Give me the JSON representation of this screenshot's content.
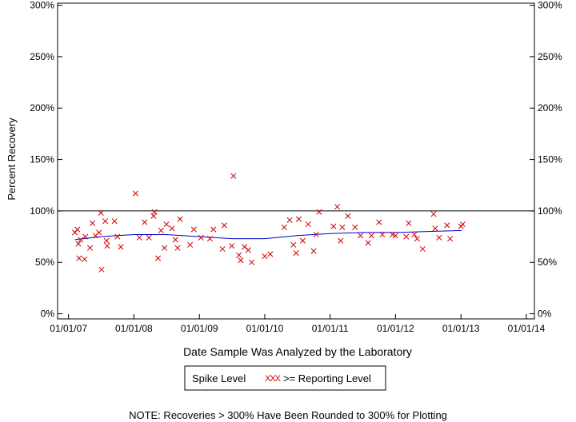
{
  "chart_data": {
    "type": "scatter",
    "xlabel": "Date Sample Was Analyzed by the Laboratory",
    "ylabel": "Percent Recovery",
    "x_ticks": [
      "01/01/07",
      "01/01/08",
      "01/01/09",
      "01/01/10",
      "01/01/11",
      "01/01/12",
      "01/01/13",
      "01/01/14"
    ],
    "y_ticks": [
      "0%",
      "50%",
      "100%",
      "150%",
      "200%",
      "250%",
      "300%"
    ],
    "xlim": [
      "2006-11-01",
      "2014-02-15"
    ],
    "ylim": [
      -5,
      302
    ],
    "reference_line": 100,
    "legend": {
      "title": "Spike Level",
      "marker": "XXX",
      "label": ">= Reporting Level",
      "placement": "bottom-center"
    },
    "note": "NOTE: Recoveries > 300% Have Been Rounded to 300% for Plotting",
    "colors": {
      "points": "#cc0000",
      "trend": "#0000cc",
      "axes": "#000000"
    },
    "series": [
      {
        "values": [
          [
            "2007-02-05",
            79
          ],
          [
            "2007-02-20",
            82
          ],
          [
            "2007-02-25",
            68
          ],
          [
            "2007-03-01",
            54
          ],
          [
            "2007-03-10",
            72
          ],
          [
            "2007-04-01",
            53
          ],
          [
            "2007-04-05",
            75
          ],
          [
            "2007-05-01",
            64
          ],
          [
            "2007-05-15",
            88
          ],
          [
            "2007-06-01",
            76
          ],
          [
            "2007-06-20",
            79
          ],
          [
            "2007-07-01",
            98
          ],
          [
            "2007-07-05",
            43
          ],
          [
            "2007-07-25",
            90
          ],
          [
            "2007-08-01",
            71
          ],
          [
            "2007-08-05",
            66
          ],
          [
            "2007-09-15",
            90
          ],
          [
            "2007-10-01",
            75
          ],
          [
            "2007-10-20",
            65
          ],
          [
            "2008-01-10",
            117
          ],
          [
            "2008-02-01",
            74
          ],
          [
            "2008-03-01",
            89
          ],
          [
            "2008-03-25",
            74
          ],
          [
            "2008-04-20",
            95
          ],
          [
            "2008-04-25",
            99
          ],
          [
            "2008-05-15",
            54
          ],
          [
            "2008-06-01",
            81
          ],
          [
            "2008-06-20",
            64
          ],
          [
            "2008-07-01",
            87
          ],
          [
            "2008-08-01",
            83
          ],
          [
            "2008-08-20",
            72
          ],
          [
            "2008-09-01",
            64
          ],
          [
            "2008-09-15",
            92
          ],
          [
            "2008-11-10",
            67
          ],
          [
            "2008-12-01",
            82
          ],
          [
            "2009-01-10",
            74
          ],
          [
            "2009-03-01",
            73
          ],
          [
            "2009-03-20",
            82
          ],
          [
            "2009-05-10",
            63
          ],
          [
            "2009-05-20",
            86
          ],
          [
            "2009-07-01",
            66
          ],
          [
            "2009-07-10",
            134
          ],
          [
            "2009-08-10",
            57
          ],
          [
            "2009-08-20",
            52
          ],
          [
            "2009-09-10",
            65
          ],
          [
            "2009-10-01",
            62
          ],
          [
            "2009-10-20",
            50
          ],
          [
            "2010-01-01",
            56
          ],
          [
            "2010-02-01",
            58
          ],
          [
            "2010-04-20",
            84
          ],
          [
            "2010-05-20",
            91
          ],
          [
            "2010-06-10",
            67
          ],
          [
            "2010-06-25",
            59
          ],
          [
            "2010-07-10",
            92
          ],
          [
            "2010-08-01",
            71
          ],
          [
            "2010-09-01",
            87
          ],
          [
            "2010-10-01",
            61
          ],
          [
            "2010-10-15",
            77
          ],
          [
            "2010-11-01",
            99
          ],
          [
            "2011-01-20",
            85
          ],
          [
            "2011-02-10",
            104
          ],
          [
            "2011-03-01",
            71
          ],
          [
            "2011-03-10",
            84
          ],
          [
            "2011-04-10",
            95
          ],
          [
            "2011-05-20",
            84
          ],
          [
            "2011-06-20",
            76
          ],
          [
            "2011-08-01",
            69
          ],
          [
            "2011-08-20",
            76
          ],
          [
            "2011-10-01",
            89
          ],
          [
            "2011-10-20",
            77
          ],
          [
            "2011-12-15",
            77
          ],
          [
            "2012-01-01",
            76
          ],
          [
            "2012-03-01",
            75
          ],
          [
            "2012-03-15",
            88
          ],
          [
            "2012-04-15",
            77
          ],
          [
            "2012-05-01",
            73
          ],
          [
            "2012-06-01",
            63
          ],
          [
            "2012-08-01",
            97
          ],
          [
            "2012-08-10",
            83
          ],
          [
            "2012-09-01",
            74
          ],
          [
            "2012-10-15",
            86
          ],
          [
            "2012-11-01",
            73
          ],
          [
            "2013-01-01",
            85
          ],
          [
            "2013-01-10",
            87
          ]
        ]
      }
    ],
    "trend_line": [
      [
        "2007-02-05",
        72
      ],
      [
        "2007-07-01",
        75
      ],
      [
        "2008-01-01",
        77
      ],
      [
        "2008-07-01",
        77
      ],
      [
        "2009-01-01",
        75
      ],
      [
        "2009-07-01",
        73
      ],
      [
        "2010-01-01",
        73
      ],
      [
        "2010-07-01",
        76
      ],
      [
        "2011-01-01",
        78
      ],
      [
        "2011-07-01",
        79
      ],
      [
        "2012-01-01",
        79
      ],
      [
        "2012-07-01",
        80
      ],
      [
        "2013-01-05",
        81
      ]
    ]
  }
}
